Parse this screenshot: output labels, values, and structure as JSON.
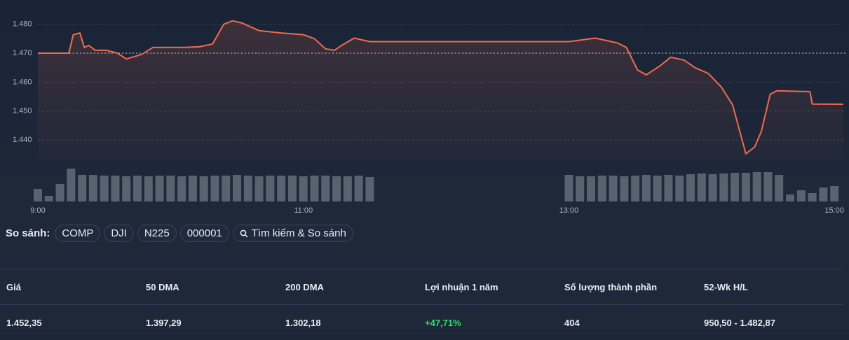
{
  "chart_data": {
    "type": "line",
    "color": "#f26a4b",
    "x": [
      "9:00",
      "9:14",
      "9:16",
      "9:19",
      "9:21",
      "9:23",
      "9:26",
      "9:31",
      "9:36",
      "9:40",
      "9:47",
      "9:52",
      "10:00",
      "10:06",
      "10:13",
      "10:19",
      "10:24",
      "10:28",
      "10:32",
      "10:40",
      "10:50",
      "11:00",
      "11:05",
      "11:10",
      "11:14",
      "11:18",
      "11:23",
      "11:30",
      "13:00",
      "13:12",
      "13:22",
      "13:26",
      "13:31",
      "13:35",
      "13:41",
      "13:46",
      "13:52",
      "13:57",
      "14:03",
      "14:09",
      "14:14",
      "14:17",
      "14:20",
      "14:24",
      "14:27",
      "14:31",
      "14:34",
      "14:49",
      "14:50",
      "15:04"
    ],
    "values": [
      1470,
      1470,
      1476.4,
      1477,
      1472,
      1472.7,
      1471,
      1471,
      1470,
      1468,
      1469.6,
      1472,
      1472,
      1472,
      1472.2,
      1473.2,
      1480,
      1481.2,
      1480.5,
      1477.8,
      1477,
      1476.4,
      1475,
      1471.5,
      1471,
      1473,
      1475.2,
      1474,
      1474,
      1475.2,
      1473.5,
      1472,
      1464.2,
      1462.5,
      1465.5,
      1468.6,
      1467.6,
      1465,
      1463,
      1458.2,
      1452.1,
      1443.6,
      1435.2,
      1437.6,
      1443,
      1455.8,
      1457,
      1456.7,
      1452.4,
      1452.35
    ],
    "xlim": [
      "9:00",
      "15:05"
    ],
    "xticks": [
      "9:00",
      "11:00",
      "13:00",
      "15:00"
    ],
    "ylim": [
      1433,
      1485
    ],
    "yticks": [
      {
        "value": 1440,
        "label": "1.440"
      },
      {
        "value": 1450,
        "label": "1.450"
      },
      {
        "value": 1460,
        "label": "1.460"
      },
      {
        "value": 1470,
        "label": "1.470"
      },
      {
        "value": 1480,
        "label": "1.480"
      }
    ],
    "reference_value": 1470,
    "grid": true,
    "volume": {
      "color": "#8a919c",
      "ylim": [
        0,
        50
      ],
      "x": [
        "9:00",
        "9:05",
        "9:10",
        "9:15",
        "9:20",
        "9:25",
        "9:30",
        "9:35",
        "9:40",
        "9:45",
        "9:50",
        "9:55",
        "10:00",
        "10:05",
        "10:10",
        "10:15",
        "10:20",
        "10:25",
        "10:30",
        "10:35",
        "10:40",
        "10:45",
        "10:50",
        "10:55",
        "11:00",
        "11:05",
        "11:10",
        "11:15",
        "11:20",
        "11:25",
        "11:30",
        "13:00",
        "13:05",
        "13:10",
        "13:15",
        "13:20",
        "13:25",
        "13:30",
        "13:35",
        "13:40",
        "13:45",
        "13:50",
        "13:55",
        "14:00",
        "14:05",
        "14:10",
        "14:15",
        "14:20",
        "14:25",
        "14:30",
        "14:35",
        "14:40",
        "14:45",
        "14:50",
        "14:55",
        "15:00"
      ],
      "values": [
        18,
        8,
        25,
        47,
        38,
        38,
        37,
        37,
        36,
        37,
        36,
        37,
        37,
        36,
        37,
        36,
        37,
        37,
        38,
        37,
        36,
        37,
        37,
        37,
        36,
        37,
        37,
        36,
        36,
        37,
        35,
        38,
        36,
        36,
        37,
        37,
        36,
        37,
        38,
        37,
        38,
        37,
        39,
        40,
        39,
        40,
        41,
        41,
        42,
        42,
        38,
        10,
        16,
        12,
        20,
        22
      ]
    }
  },
  "compare": {
    "label": "So sánh:",
    "items": [
      "COMP",
      "DJI",
      "N225",
      "000001"
    ],
    "search": "Tìm kiếm & So sánh"
  },
  "stats": {
    "headers": [
      "Giá",
      "50 DMA",
      "200 DMA",
      "Lợi nhuận 1 năm",
      "Số lượng thành phần",
      "52-Wk H/L"
    ],
    "values": [
      "1.452,35",
      "1.397,29",
      "1.302,18",
      "+47,71%",
      "404",
      "950,50 - 1.482,87"
    ]
  }
}
